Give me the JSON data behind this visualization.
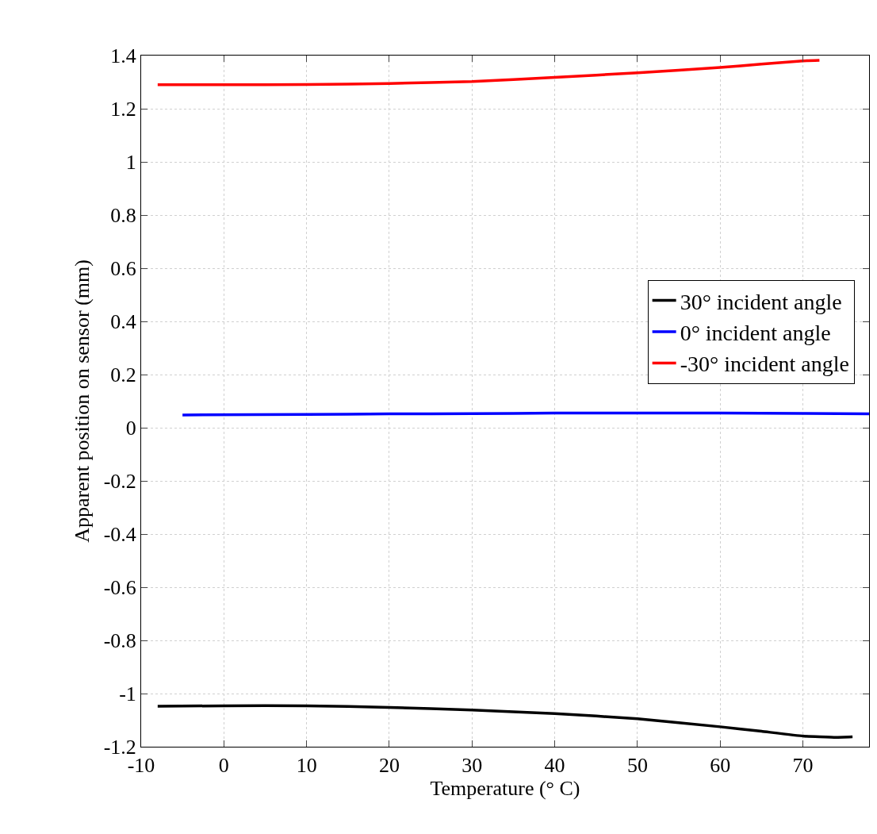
{
  "chart_data": {
    "type": "line",
    "xlabel": "Temperature (° C)",
    "ylabel": "Apparent position on sensor (mm)",
    "series": [
      {
        "name": "30° incident angle",
        "color": "#000000",
        "x": [
          -8,
          0,
          10,
          20,
          30,
          40,
          50,
          60,
          65,
          70,
          74,
          76
        ],
        "values": [
          -1.048,
          -1.046,
          -1.046,
          -1.052,
          -1.062,
          -1.075,
          -1.095,
          -1.125,
          -1.142,
          -1.16,
          -1.165,
          -1.163
        ]
      },
      {
        "name": "0° incident angle",
        "color": "#0000ff",
        "x": [
          -5,
          10,
          20,
          30,
          40,
          50,
          60,
          70,
          78
        ],
        "values": [
          0.048,
          0.05,
          0.052,
          0.053,
          0.055,
          0.055,
          0.055,
          0.054,
          0.052
        ]
      },
      {
        "name": "-30° incident angle",
        "color": "#ff0000",
        "x": [
          -8,
          0,
          10,
          20,
          30,
          40,
          50,
          60,
          65,
          70,
          72
        ],
        "values": [
          1.29,
          1.29,
          1.291,
          1.295,
          1.302,
          1.318,
          1.335,
          1.355,
          1.368,
          1.38,
          1.382
        ]
      }
    ],
    "xlim": [
      -10,
      78
    ],
    "xticks": [
      -10,
      0,
      10,
      20,
      30,
      40,
      50,
      60,
      70
    ],
    "ylim": [
      -1.2,
      1.4
    ],
    "yticks": [
      {
        "value": -1.2,
        "label": "-1.2"
      },
      -1,
      {
        "value": -0.8,
        "label": "-0.8"
      },
      {
        "value": -0.6,
        "label": "-0.6"
      },
      {
        "value": -0.4,
        "label": "-0.4"
      },
      {
        "value": -0.2,
        "label": "-0.2"
      },
      0,
      0.2,
      0.4,
      0.6,
      0.8,
      1,
      1.2,
      1.4
    ],
    "grid": true,
    "legend": "right",
    "line_style": "solid",
    "marker": "none"
  }
}
